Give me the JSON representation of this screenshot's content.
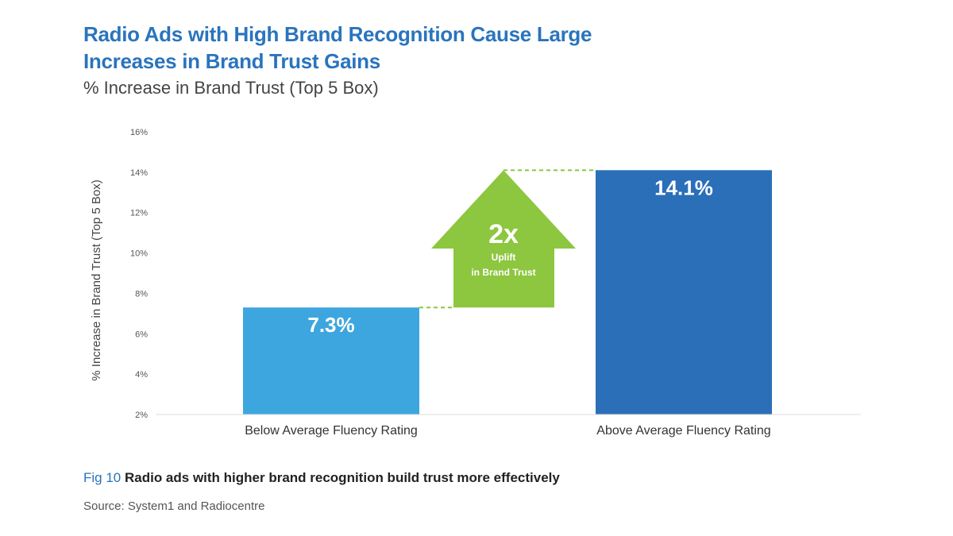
{
  "header": {
    "title": "Radio Ads with High Brand Recognition Cause Large Increases in Brand Trust Gains",
    "subtitle": "% Increase in Brand Trust (Top 5 Box)"
  },
  "chart_data": {
    "type": "bar",
    "categories": [
      "Below Average Fluency Rating",
      "Above Average Fluency Rating"
    ],
    "values": [
      7.3,
      14.1
    ],
    "data_labels": [
      "7.3%",
      "14.1%"
    ],
    "ylabel": "% Increase in Brand Trust (Top 5 Box)",
    "ylim": [
      2,
      16
    ],
    "yticks": [
      2,
      4,
      6,
      8,
      10,
      12,
      14,
      16
    ],
    "ytick_labels": [
      "2%",
      "4%",
      "6%",
      "8%",
      "10%",
      "12%",
      "14%",
      "16%"
    ],
    "grid": false,
    "colors": {
      "bar_below": "#3ea6df",
      "bar_above": "#2a6fb8",
      "arrow": "#8dc63f",
      "connector": "#8dc63f"
    },
    "annotation": {
      "big": "2x",
      "line1": "Uplift",
      "line2": "in Brand Trust"
    }
  },
  "caption": {
    "fig": "Fig 10",
    "text": "Radio ads with higher brand recognition build trust more effectively"
  },
  "source": "Source: System1 and Radiocentre"
}
